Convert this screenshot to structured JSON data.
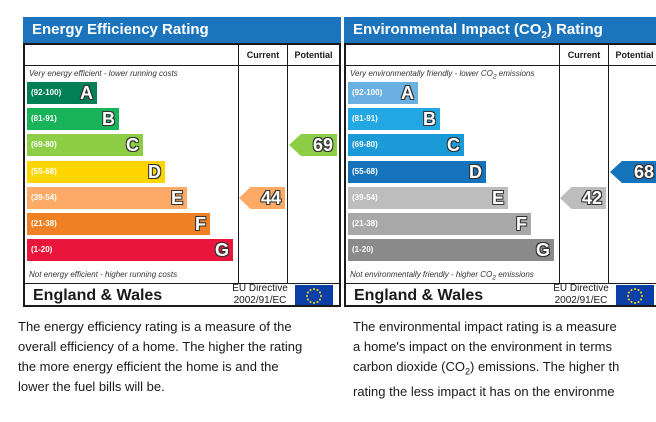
{
  "colors": {
    "title_bar": "#1c75bc",
    "energy_bands": [
      "#008054",
      "#19b459",
      "#8dce46",
      "#ffd500",
      "#fcaa65",
      "#ef8023",
      "#e9153b"
    ],
    "env_bands": [
      "#6ab0e0",
      "#22a7e3",
      "#1a9ad6",
      "#1473bb",
      "#bdbdbd",
      "#a8a8a8",
      "#8a8a8a"
    ],
    "energy_current_arrow": "#fcaa65",
    "energy_potential_arrow": "#8dce46",
    "env_current_arrow": "#bdbdbd",
    "env_potential_arrow": "#1473bb"
  },
  "energy": {
    "title": "Energy Efficiency Rating",
    "col_current": "Current",
    "col_potential": "Potential",
    "top_note": "Very energy efficient - lower running costs",
    "bottom_note": "Not energy efficient - higher running costs",
    "bands": [
      {
        "range": "(92-100)",
        "letter": "A"
      },
      {
        "range": "(81-91)",
        "letter": "B"
      },
      {
        "range": "(69-80)",
        "letter": "C"
      },
      {
        "range": "(55-68)",
        "letter": "D"
      },
      {
        "range": "(39-54)",
        "letter": "E"
      },
      {
        "range": "(21-38)",
        "letter": "F"
      },
      {
        "range": "(1-20)",
        "letter": "G"
      }
    ],
    "current_rating": 44,
    "potential_rating": 69,
    "country": "England & Wales",
    "directive_line1": "EU Directive",
    "directive_line2": "2002/91/EC"
  },
  "environment": {
    "title_pre": "Environmental Impact (CO",
    "title_sub": "2",
    "title_post": ") Rating",
    "col_current": "Current",
    "col_potential": "Potential",
    "top_note_pre": "Very environmentally friendly - lower CO",
    "top_note_sub": "2",
    "top_note_post": " emissions",
    "bottom_note_pre": "Not environmentally friendly - higher CO",
    "bottom_note_sub": "2",
    "bottom_note_post": " emissions",
    "bands": [
      {
        "range": "(92-100)",
        "letter": "A"
      },
      {
        "range": "(81-91)",
        "letter": "B"
      },
      {
        "range": "(69-80)",
        "letter": "C"
      },
      {
        "range": "(55-68)",
        "letter": "D"
      },
      {
        "range": "(39-54)",
        "letter": "E"
      },
      {
        "range": "(21-38)",
        "letter": "F"
      },
      {
        "range": "(1-20)",
        "letter": "G"
      }
    ],
    "current_rating": 42,
    "potential_rating": 68,
    "country": "England & Wales",
    "directive_line1": "EU Directive",
    "directive_line2": "2002/91/EC"
  },
  "energy_description": {
    "line1": "The energy efficiency rating is a measure of the",
    "line2": "overall efficiency of a home. The higher the rating",
    "line3": "the more energy efficient the home is and the",
    "line4": "lower the fuel bills will be."
  },
  "env_description": {
    "line1": "The environmental impact rating is a measure",
    "line2": "a home's impact on the environment in terms",
    "line3_pre": "carbon dioxide (CO",
    "line3_sub": "2",
    "line3_post": ") emissions. The higher th",
    "line4": "rating the less impact it has on the environme"
  }
}
